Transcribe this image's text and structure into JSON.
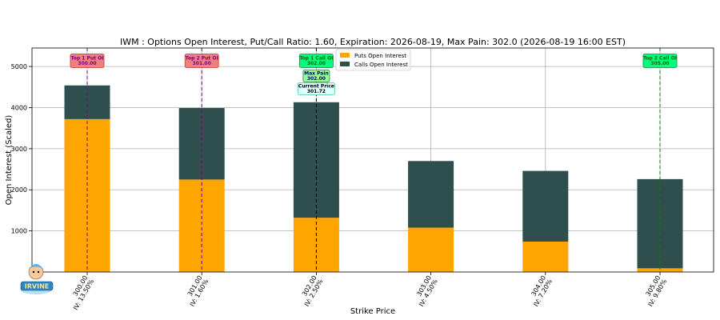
{
  "chart_data": {
    "type": "bar",
    "title": "IWM : Options Open Interest, Put/Call Ratio: 1.60, Expiration: 2026-08-19, Max Pain: 302.0 (2026-08-19 16:00 EST)",
    "xlabel": "Strike Price",
    "ylabel": "Open Interest (Scaled)",
    "stacked": true,
    "grid": true,
    "legend_position": "top-center",
    "ylim": [
      0,
      5450
    ],
    "yticks": [
      1000,
      2000,
      3000,
      4000,
      5000
    ],
    "categories": [
      "300.00",
      "301.00",
      "302.00",
      "303.00",
      "304.00",
      "305.00"
    ],
    "iv_labels": [
      "IV: 13.50%",
      "IV: 1.60%",
      "IV: 2.50%",
      "IV: 4.50%",
      "IV: 7.20%",
      "IV: 9.80%"
    ],
    "series": [
      {
        "name": "Puts Open Interest",
        "color": "#FFA500",
        "values": [
          3720,
          2250,
          1320,
          1080,
          740,
          90
        ]
      },
      {
        "name": "Calls Open Interest",
        "color": "#2F4F4F",
        "values": [
          820,
          1740,
          2810,
          1620,
          1720,
          2170
        ]
      }
    ],
    "markers": [
      {
        "kind": "put",
        "label": "Top 1 Put OI",
        "value": "300.00",
        "strike_index": 0,
        "line_color": "#800080",
        "box_color": "#F08080",
        "text_color": "#800080"
      },
      {
        "kind": "put",
        "label": "Top 2 Put OI",
        "value": "301.00",
        "strike_index": 1,
        "line_color": "#800080",
        "box_color": "#F08080",
        "text_color": "#800080"
      },
      {
        "kind": "call",
        "label": "Top 1 Call OI",
        "value": "302.00",
        "strike_index": 2,
        "line_color": "#000000",
        "box_color": "#00FF7F",
        "text_color": "#006400"
      },
      {
        "kind": "call",
        "label": "Top 2 Call OI",
        "value": "305.00",
        "strike_index": 5,
        "line_color": "#008000",
        "box_color": "#00FF7F",
        "text_color": "#006400"
      }
    ],
    "max_pain": {
      "label": "Max Pain",
      "value": "302.00",
      "strike_index": 2,
      "box_color": "#98FB98",
      "text_color": "#00008B"
    },
    "current_price": {
      "label": "Current Price",
      "value": "301.72",
      "box_color": "#E0FFFF",
      "text_color": "#000000"
    }
  },
  "logo": {
    "text": "IRVINE"
  }
}
